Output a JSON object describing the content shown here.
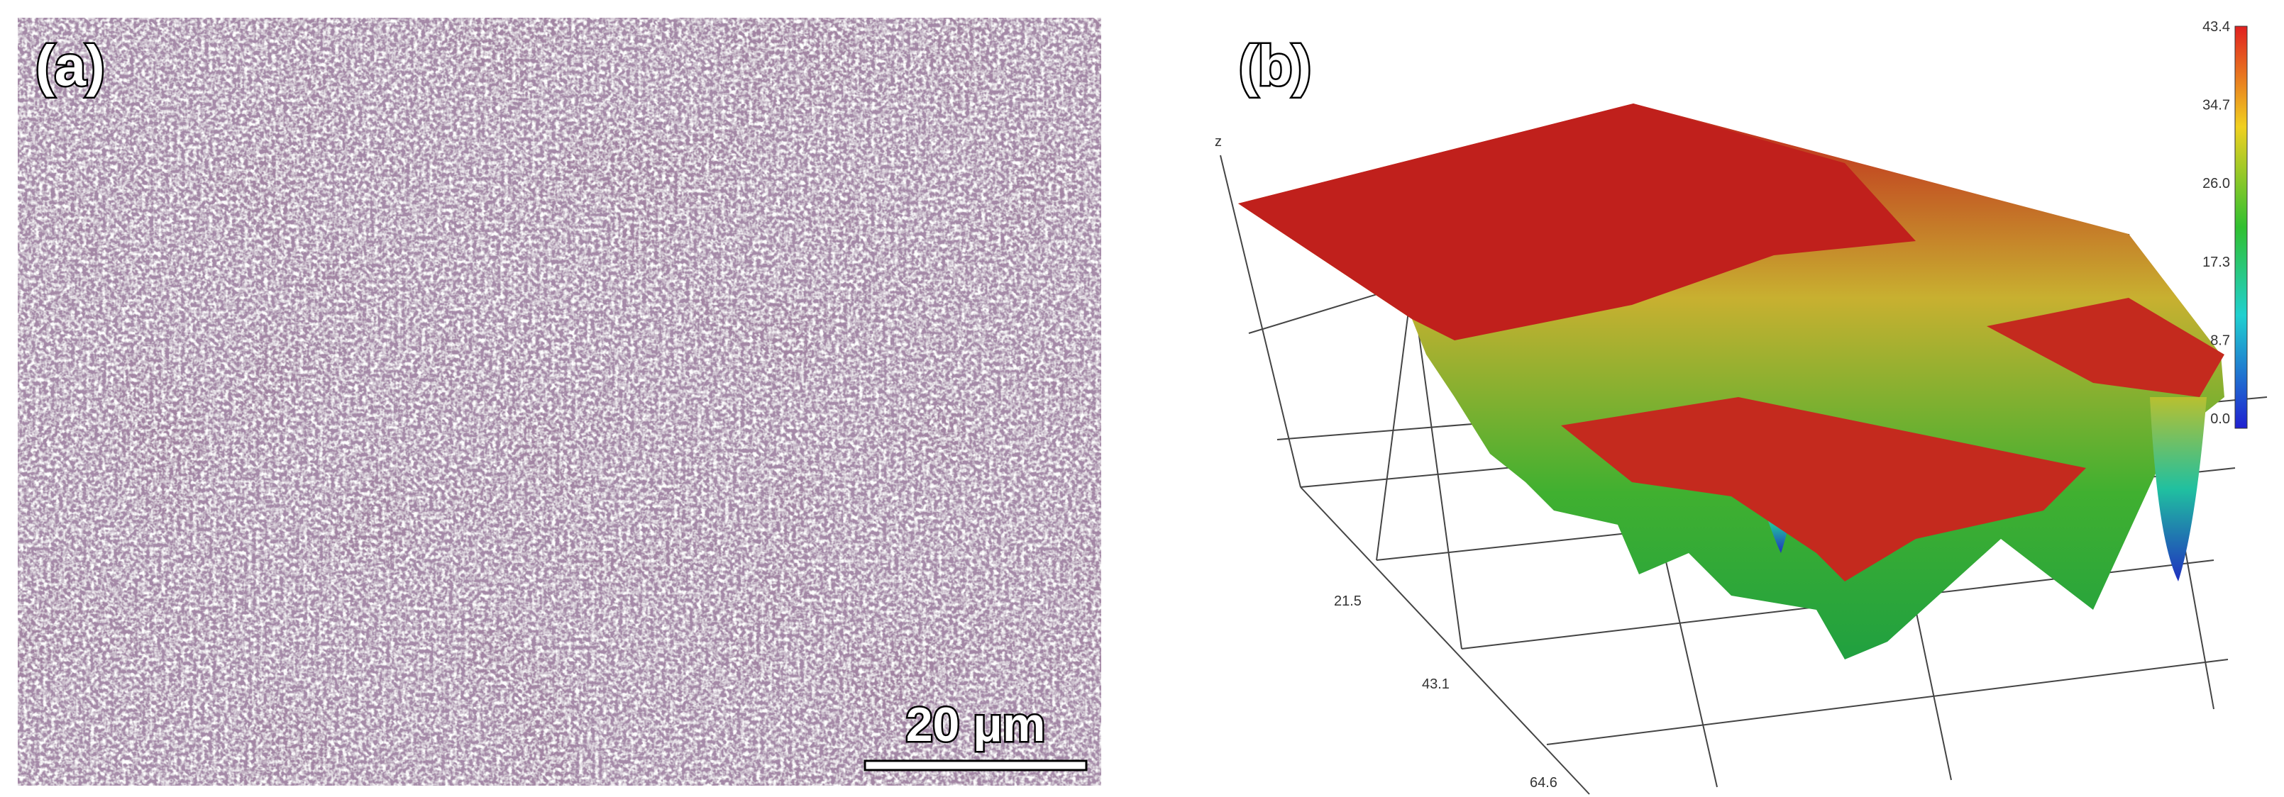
{
  "panel_a": {
    "label": "(a)",
    "scale_bar": "20 μm"
  },
  "panel_b": {
    "label": "(b)",
    "axis_label": "z",
    "colorbar_ticks": [
      "43.4",
      "34.7",
      "26.0",
      "17.3",
      "8.7",
      "0.0"
    ],
    "axis_ticks": [
      "21.5",
      "43.1",
      "64.6"
    ]
  }
}
